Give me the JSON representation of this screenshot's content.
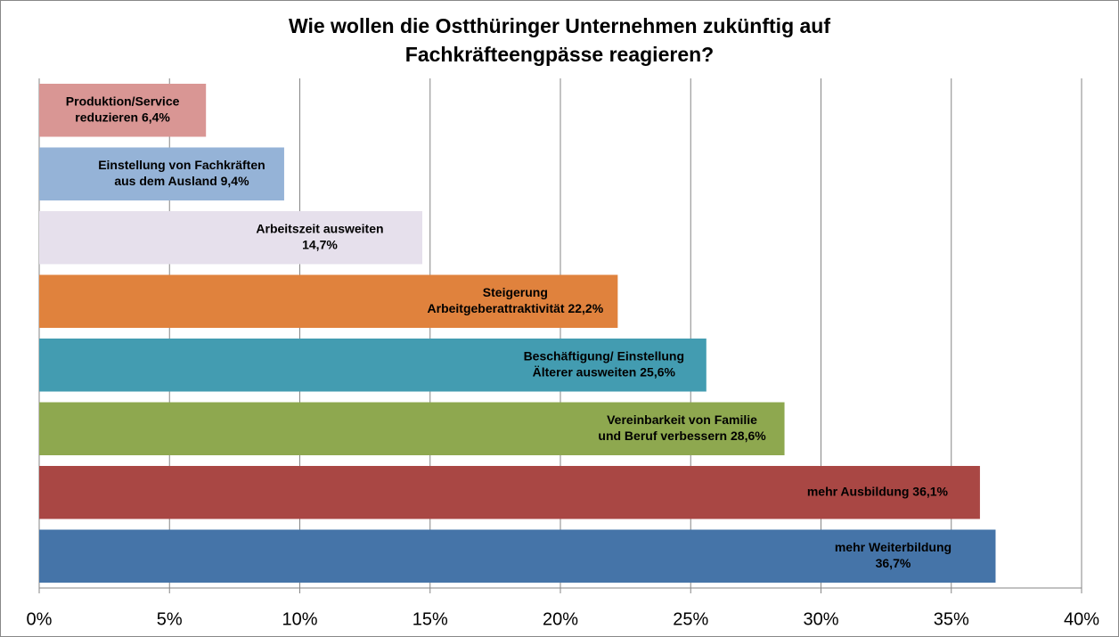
{
  "chart_data": {
    "type": "barh",
    "title": [
      "Wie wollen die Ostthüringer Unternehmen zukünftig auf",
      "Fachkräfteengpässe reagieren?"
    ],
    "values": [
      6.4,
      9.4,
      14.7,
      22.2,
      25.6,
      28.6,
      36.1,
      36.7
    ],
    "data_labels": [
      [
        "Produktion/Service",
        "reduzieren 6,4%"
      ],
      [
        "Einstellung von Fachkräften",
        "aus dem Ausland 9,4%"
      ],
      [
        "Arbeitszeit ausweiten",
        "14,7%"
      ],
      [
        "Steigerung",
        "Arbeitgeberattraktivität 22,2%"
      ],
      [
        "Beschäftigung/ Einstellung",
        "Älterer ausweiten 25,6%"
      ],
      [
        "Vereinbarkeit von Familie",
        "und Beruf  verbessern 28,6%"
      ],
      [
        "mehr Ausbildung 36,1%"
      ],
      [
        "mehr Weiterbildung",
        "36,7%"
      ]
    ],
    "colors": [
      "#d99694",
      "#95b3d7",
      "#e6e0ec",
      "#e0823d",
      "#439cb1",
      "#8ea84f",
      "#a94744",
      "#4574a8"
    ],
    "xlim": [
      0,
      40
    ],
    "xticks": [
      {
        "value": 0,
        "label": "0%"
      },
      {
        "value": 5,
        "label": "5%"
      },
      {
        "value": 10,
        "label": "10%"
      },
      {
        "value": 15,
        "label": "15%"
      },
      {
        "value": 20,
        "label": "20%"
      },
      {
        "value": 25,
        "label": "25%"
      },
      {
        "value": 30,
        "label": "30%"
      },
      {
        "value": 35,
        "label": "35%"
      },
      {
        "value": 40,
        "label": "40%"
      }
    ],
    "grid": true
  }
}
